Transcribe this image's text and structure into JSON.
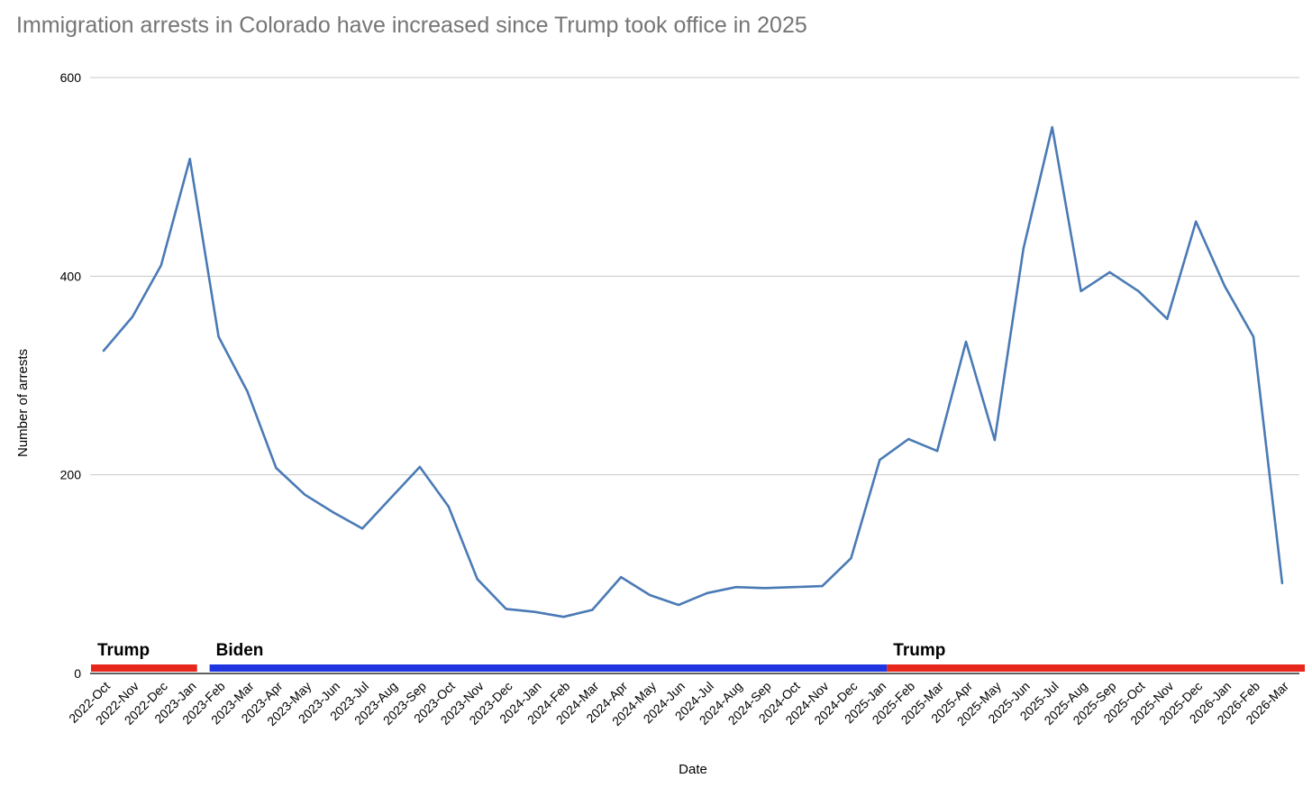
{
  "chart_data": {
    "type": "line",
    "title": "Immigration arrests in Colorado have increased since Trump took office in 2025",
    "xlabel": "Date",
    "ylabel": "Number of arrests",
    "ylim": [
      0,
      600
    ],
    "yticks": [
      0,
      200,
      400,
      600
    ],
    "grid": true,
    "line_color": "#4a7ab5",
    "categories": [
      "2022-Oct",
      "2022-Nov",
      "2022-Dec",
      "2023-Jan",
      "2023-Feb",
      "2023-Mar",
      "2023-Apr",
      "2023-May",
      "2023-Jun",
      "2023-Jul",
      "2023-Aug",
      "2023-Sep",
      "2023-Oct",
      "2023-Nov",
      "2023-Dec",
      "2024-Jan",
      "2024-Feb",
      "2024-Mar",
      "2024-Apr",
      "2024-May",
      "2024-Jun",
      "2024-Jul",
      "2024-Aug",
      "2024-Sep",
      "2024-Oct",
      "2024-Nov",
      "2024-Dec",
      "2025-Jan",
      "2025-Feb",
      "2025-Mar",
      "2025-Apr",
      "2025-May",
      "2025-Jun",
      "2025-Jul",
      "2025-Aug",
      "2025-Sep",
      "2025-Oct",
      "2025-Nov",
      "2025-Dec",
      "2026-Jan",
      "2026-Feb",
      "2026-Mar"
    ],
    "series": [
      {
        "name": "Number of arrests",
        "values": [
          325,
          359,
          411,
          518,
          339,
          284,
          207,
          180,
          162,
          146,
          177,
          208,
          168,
          95,
          65,
          62,
          57,
          64,
          97,
          79,
          69,
          81,
          87,
          86,
          87,
          88,
          116,
          215,
          236,
          224,
          334,
          235,
          428,
          550,
          385,
          404,
          385,
          357,
          455,
          390,
          339,
          91
        ]
      }
    ],
    "annotations": [
      {
        "label": "Trump",
        "start": "2022-Oct",
        "end": "2023-Jan",
        "color": "#e8271c"
      },
      {
        "label": "Biden",
        "start": "2023-Feb",
        "end": "2025-Jan",
        "color": "#1f35e0"
      },
      {
        "label": "Trump",
        "start": "2025-Jan",
        "end": "2026-Mar",
        "color": "#e8271c"
      }
    ]
  }
}
